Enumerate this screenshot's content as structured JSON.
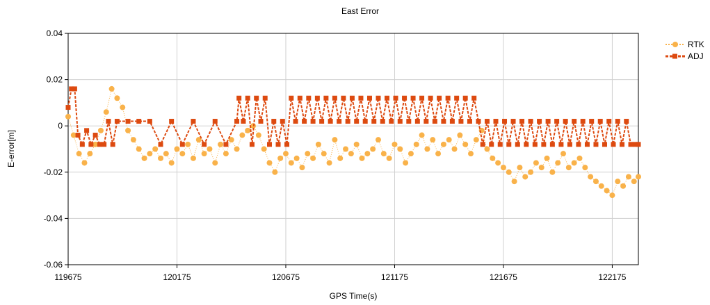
{
  "chart_data": {
    "type": "scatter",
    "title": "East Error",
    "xlabel": "GPS Time(s)",
    "ylabel": "E-error[m]",
    "xlim": [
      119675,
      122295
    ],
    "ylim": [
      -0.06,
      0.04
    ],
    "x_ticks": [
      119675,
      120175,
      120675,
      121175,
      121675,
      122175
    ],
    "y_ticks": [
      -0.06,
      -0.04,
      -0.02,
      0,
      0.02,
      0.04
    ],
    "x_tick_labels": [
      "119675",
      "120175",
      "120675",
      "121175",
      "121675",
      "122175"
    ],
    "y_tick_labels": [
      "-0.06",
      "-0.04",
      "-0.02",
      "0",
      "0.02",
      "0.04"
    ],
    "grid": true,
    "legend_position": "top-right",
    "series": [
      {
        "name": "RTK",
        "color": "#f9b24a",
        "marker": "circle",
        "line": "dotted",
        "x": [
          119675,
          119700,
          119725,
          119750,
          119775,
          119800,
          119825,
          119850,
          119875,
          119900,
          119925,
          119950,
          119975,
          120000,
          120025,
          120050,
          120075,
          120100,
          120125,
          120150,
          120175,
          120200,
          120225,
          120250,
          120275,
          120300,
          120325,
          120350,
          120375,
          120400,
          120425,
          120450,
          120475,
          120500,
          120525,
          120550,
          120575,
          120600,
          120625,
          120650,
          120675,
          120700,
          120725,
          120750,
          120775,
          120800,
          120825,
          120850,
          120875,
          120900,
          120925,
          120950,
          120975,
          121000,
          121025,
          121050,
          121075,
          121100,
          121125,
          121150,
          121175,
          121200,
          121225,
          121250,
          121275,
          121300,
          121325,
          121350,
          121375,
          121400,
          121425,
          121450,
          121475,
          121500,
          121525,
          121550,
          121575,
          121600,
          121625,
          121650,
          121675,
          121700,
          121725,
          121750,
          121775,
          121800,
          121825,
          121850,
          121875,
          121900,
          121925,
          121950,
          121975,
          122000,
          122025,
          122050,
          122075,
          122100,
          122125,
          122150,
          122175,
          122200,
          122225,
          122250,
          122275,
          122295
        ],
        "y": [
          0.004,
          -0.004,
          -0.012,
          -0.016,
          -0.012,
          -0.008,
          -0.002,
          0.006,
          0.016,
          0.012,
          0.008,
          -0.002,
          -0.006,
          -0.01,
          -0.014,
          -0.012,
          -0.01,
          -0.014,
          -0.012,
          -0.016,
          -0.01,
          -0.012,
          -0.008,
          -0.014,
          -0.006,
          -0.012,
          -0.01,
          -0.016,
          -0.008,
          -0.012,
          -0.006,
          -0.01,
          -0.004,
          -0.002,
          0.0,
          -0.004,
          -0.01,
          -0.016,
          -0.02,
          -0.014,
          -0.012,
          -0.016,
          -0.014,
          -0.018,
          -0.012,
          -0.014,
          -0.008,
          -0.012,
          -0.016,
          -0.006,
          -0.014,
          -0.01,
          -0.012,
          -0.008,
          -0.014,
          -0.012,
          -0.01,
          -0.006,
          -0.012,
          -0.014,
          -0.008,
          -0.01,
          -0.016,
          -0.012,
          -0.008,
          -0.004,
          -0.01,
          -0.006,
          -0.012,
          -0.008,
          -0.006,
          -0.01,
          -0.004,
          -0.008,
          -0.012,
          -0.006,
          -0.002,
          -0.01,
          -0.014,
          -0.016,
          -0.018,
          -0.02,
          -0.024,
          -0.018,
          -0.022,
          -0.02,
          -0.016,
          -0.018,
          -0.014,
          -0.02,
          -0.016,
          -0.012,
          -0.018,
          -0.016,
          -0.014,
          -0.018,
          -0.022,
          -0.024,
          -0.026,
          -0.028,
          -0.03,
          -0.024,
          -0.026,
          -0.022,
          -0.024,
          -0.022
        ]
      },
      {
        "name": "ADJ",
        "color": "#dd4a10",
        "marker": "square",
        "line": "dashed",
        "x": [
          119675,
          119690,
          119705,
          119720,
          119740,
          119760,
          119780,
          119800,
          119820,
          119840,
          119860,
          119880,
          119900,
          119950,
          120000,
          120050,
          120100,
          120150,
          120200,
          120250,
          120300,
          120350,
          120400,
          120450,
          120460,
          120480,
          120500,
          120520,
          120540,
          120560,
          120580,
          120600,
          120620,
          120640,
          120660,
          120680,
          120700,
          120720,
          120740,
          120760,
          120780,
          120800,
          120820,
          120840,
          120860,
          120880,
          120900,
          120920,
          120940,
          120960,
          120980,
          121000,
          121020,
          121040,
          121060,
          121080,
          121100,
          121120,
          121140,
          121160,
          121180,
          121200,
          121220,
          121240,
          121260,
          121280,
          121300,
          121320,
          121340,
          121360,
          121380,
          121400,
          121420,
          121440,
          121460,
          121480,
          121500,
          121520,
          121540,
          121560,
          121580,
          121600,
          121620,
          121640,
          121660,
          121680,
          121700,
          121720,
          121740,
          121760,
          121780,
          121800,
          121820,
          121840,
          121860,
          121880,
          121900,
          121920,
          121940,
          121960,
          121980,
          122000,
          122020,
          122040,
          122060,
          122080,
          122100,
          122120,
          122140,
          122160,
          122180,
          122200,
          122220,
          122240,
          122260,
          122280,
          122295
        ],
        "y": [
          0.008,
          0.016,
          0.016,
          -0.004,
          -0.008,
          -0.002,
          -0.008,
          -0.004,
          -0.008,
          -0.008,
          0.002,
          -0.008,
          0.002,
          0.002,
          0.002,
          0.002,
          -0.008,
          0.002,
          -0.008,
          0.002,
          -0.008,
          0.002,
          -0.008,
          0.002,
          0.012,
          0.002,
          0.012,
          -0.008,
          0.012,
          0.002,
          0.012,
          -0.008,
          0.002,
          -0.008,
          0.002,
          -0.008,
          0.012,
          0.002,
          0.012,
          0.002,
          0.012,
          0.002,
          0.012,
          0.002,
          0.012,
          0.002,
          0.012,
          0.002,
          0.012,
          0.002,
          0.012,
          0.002,
          0.012,
          0.002,
          0.012,
          0.002,
          0.012,
          0.002,
          0.012,
          0.002,
          0.012,
          0.002,
          0.012,
          0.002,
          0.012,
          0.002,
          0.012,
          0.002,
          0.012,
          0.002,
          0.012,
          0.002,
          0.012,
          0.002,
          0.012,
          0.002,
          0.012,
          0.002,
          0.012,
          0.002,
          -0.008,
          0.002,
          -0.008,
          0.002,
          -0.008,
          0.002,
          -0.008,
          0.002,
          -0.008,
          0.002,
          -0.008,
          0.002,
          -0.008,
          0.002,
          -0.008,
          0.002,
          -0.008,
          0.002,
          -0.008,
          0.002,
          -0.008,
          0.002,
          -0.008,
          0.002,
          -0.008,
          0.002,
          -0.008,
          0.002,
          -0.008,
          0.002,
          -0.008,
          0.002,
          -0.008,
          0.002,
          -0.008,
          -0.008,
          -0.008
        ]
      }
    ]
  }
}
